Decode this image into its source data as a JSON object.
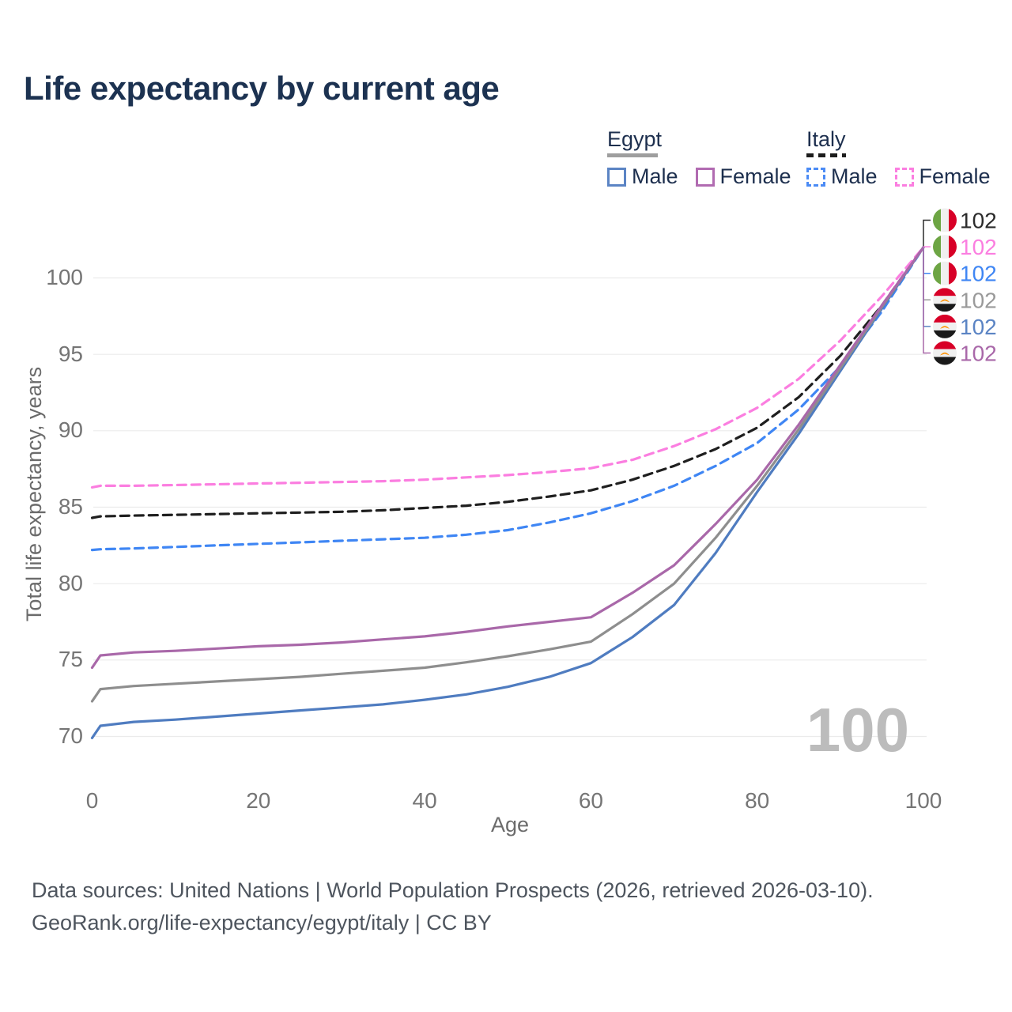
{
  "page": {
    "title": "Life expectancy by current age",
    "watermark_age_counter": "100",
    "footer_line1": "Data sources: United Nations | World Population Prospects (2026, retrieved 2026-03-10).",
    "footer_line2": "GeoRank.org/life-expectancy/egypt/italy | CC BY"
  },
  "legend": {
    "groups": [
      {
        "country": "Egypt",
        "underline_style": "solid",
        "underline_color": "#9e9e9e",
        "items": [
          {
            "label": "Male",
            "color": "#5b84c4",
            "dashed": false
          },
          {
            "label": "Female",
            "color": "#b16bb1",
            "dashed": false
          }
        ]
      },
      {
        "country": "Italy",
        "underline_style": "dashed",
        "underline_color": "#1c1c1c",
        "items": [
          {
            "label": "Male",
            "color": "#4b8bf5",
            "dashed": true
          },
          {
            "label": "Female",
            "color": "#fb7ee0",
            "dashed": true
          }
        ]
      }
    ]
  },
  "icons": {
    "italy_flag_colors": [
      "#6da544",
      "#f0f0f0",
      "#d80027"
    ],
    "egypt_flag_colors": [
      "#d80027",
      "#f0f0f0",
      "#1a1a1a",
      "#ff9811"
    ]
  },
  "chart_data": {
    "type": "line",
    "title": "Life expectancy by current age",
    "xlabel": "Age",
    "ylabel": "Total life expectancy, years",
    "x_ticks": [
      0,
      20,
      40,
      60,
      80,
      100
    ],
    "y_ticks": [
      70,
      75,
      80,
      85,
      90,
      95,
      100
    ],
    "xlim": [
      0,
      100
    ],
    "ylim": [
      70,
      102
    ],
    "grid": "horizontal",
    "legend_position": "top-right",
    "x": [
      0,
      1,
      5,
      10,
      15,
      20,
      25,
      30,
      35,
      40,
      45,
      50,
      55,
      60,
      65,
      70,
      75,
      80,
      85,
      90,
      95,
      100
    ],
    "series": [
      {
        "key": "italy_both",
        "name": "Italy (both sexes)",
        "country": "Italy",
        "color": "#1f1f1f",
        "dashed": true,
        "values": [
          84.3,
          84.4,
          84.45,
          84.5,
          84.55,
          84.6,
          84.65,
          84.7,
          84.8,
          84.95,
          85.1,
          85.35,
          85.7,
          86.1,
          86.8,
          87.7,
          88.8,
          90.2,
          92.2,
          94.9,
          98.2,
          102
        ]
      },
      {
        "key": "italy_male",
        "name": "Italy Male",
        "country": "Italy",
        "color": "#3f86f4",
        "dashed": true,
        "values": [
          82.2,
          82.25,
          82.3,
          82.4,
          82.5,
          82.6,
          82.7,
          82.8,
          82.9,
          83.0,
          83.2,
          83.5,
          84.0,
          84.6,
          85.4,
          86.4,
          87.7,
          89.2,
          91.4,
          94.2,
          97.8,
          102
        ]
      },
      {
        "key": "italy_female",
        "name": "Italy Female",
        "country": "Italy",
        "color": "#fb7ee0",
        "dashed": true,
        "values": [
          86.3,
          86.4,
          86.4,
          86.45,
          86.5,
          86.55,
          86.6,
          86.65,
          86.7,
          86.8,
          86.95,
          87.1,
          87.3,
          87.55,
          88.1,
          89.0,
          90.1,
          91.5,
          93.4,
          95.9,
          98.8,
          102
        ]
      },
      {
        "key": "egypt_male",
        "name": "Egypt Male",
        "country": "Egypt",
        "color": "#4f7cc0",
        "dashed": false,
        "values": [
          69.9,
          70.7,
          70.95,
          71.1,
          71.3,
          71.5,
          71.7,
          71.9,
          72.1,
          72.4,
          72.75,
          73.25,
          73.9,
          74.8,
          76.5,
          78.6,
          82.0,
          86.0,
          89.8,
          93.9,
          98.0,
          102
        ]
      },
      {
        "key": "egypt_both",
        "name": "Egypt (both sexes)",
        "country": "Egypt",
        "color": "#8e8e8e",
        "dashed": false,
        "values": [
          72.3,
          73.1,
          73.3,
          73.45,
          73.6,
          73.75,
          73.9,
          74.1,
          74.3,
          74.5,
          74.85,
          75.25,
          75.7,
          76.2,
          78.0,
          80.0,
          83.0,
          86.4,
          90.1,
          94.1,
          98.1,
          102
        ]
      },
      {
        "key": "egypt_female",
        "name": "Egypt Female",
        "country": "Egypt",
        "color": "#a968a9",
        "dashed": false,
        "values": [
          74.5,
          75.3,
          75.5,
          75.6,
          75.75,
          75.9,
          76.0,
          76.15,
          76.35,
          76.55,
          76.85,
          77.2,
          77.5,
          77.8,
          79.4,
          81.2,
          83.9,
          86.8,
          90.4,
          94.3,
          98.2,
          102
        ]
      }
    ],
    "end_labels": [
      {
        "flag": "italy",
        "value": "102",
        "color": "#2b2b2b",
        "series": "Italy (both sexes)"
      },
      {
        "flag": "italy",
        "value": "102",
        "color": "#fb7ee0",
        "series": "Italy Female"
      },
      {
        "flag": "italy",
        "value": "102",
        "color": "#3f86f4",
        "series": "Italy Male"
      },
      {
        "flag": "egypt",
        "value": "102",
        "color": "#9a9a9a",
        "series": "Egypt (both sexes)"
      },
      {
        "flag": "egypt",
        "value": "102",
        "color": "#5b84c4",
        "series": "Egypt Male"
      },
      {
        "flag": "egypt",
        "value": "102",
        "color": "#a968a9",
        "series": "Egypt Female"
      }
    ]
  }
}
